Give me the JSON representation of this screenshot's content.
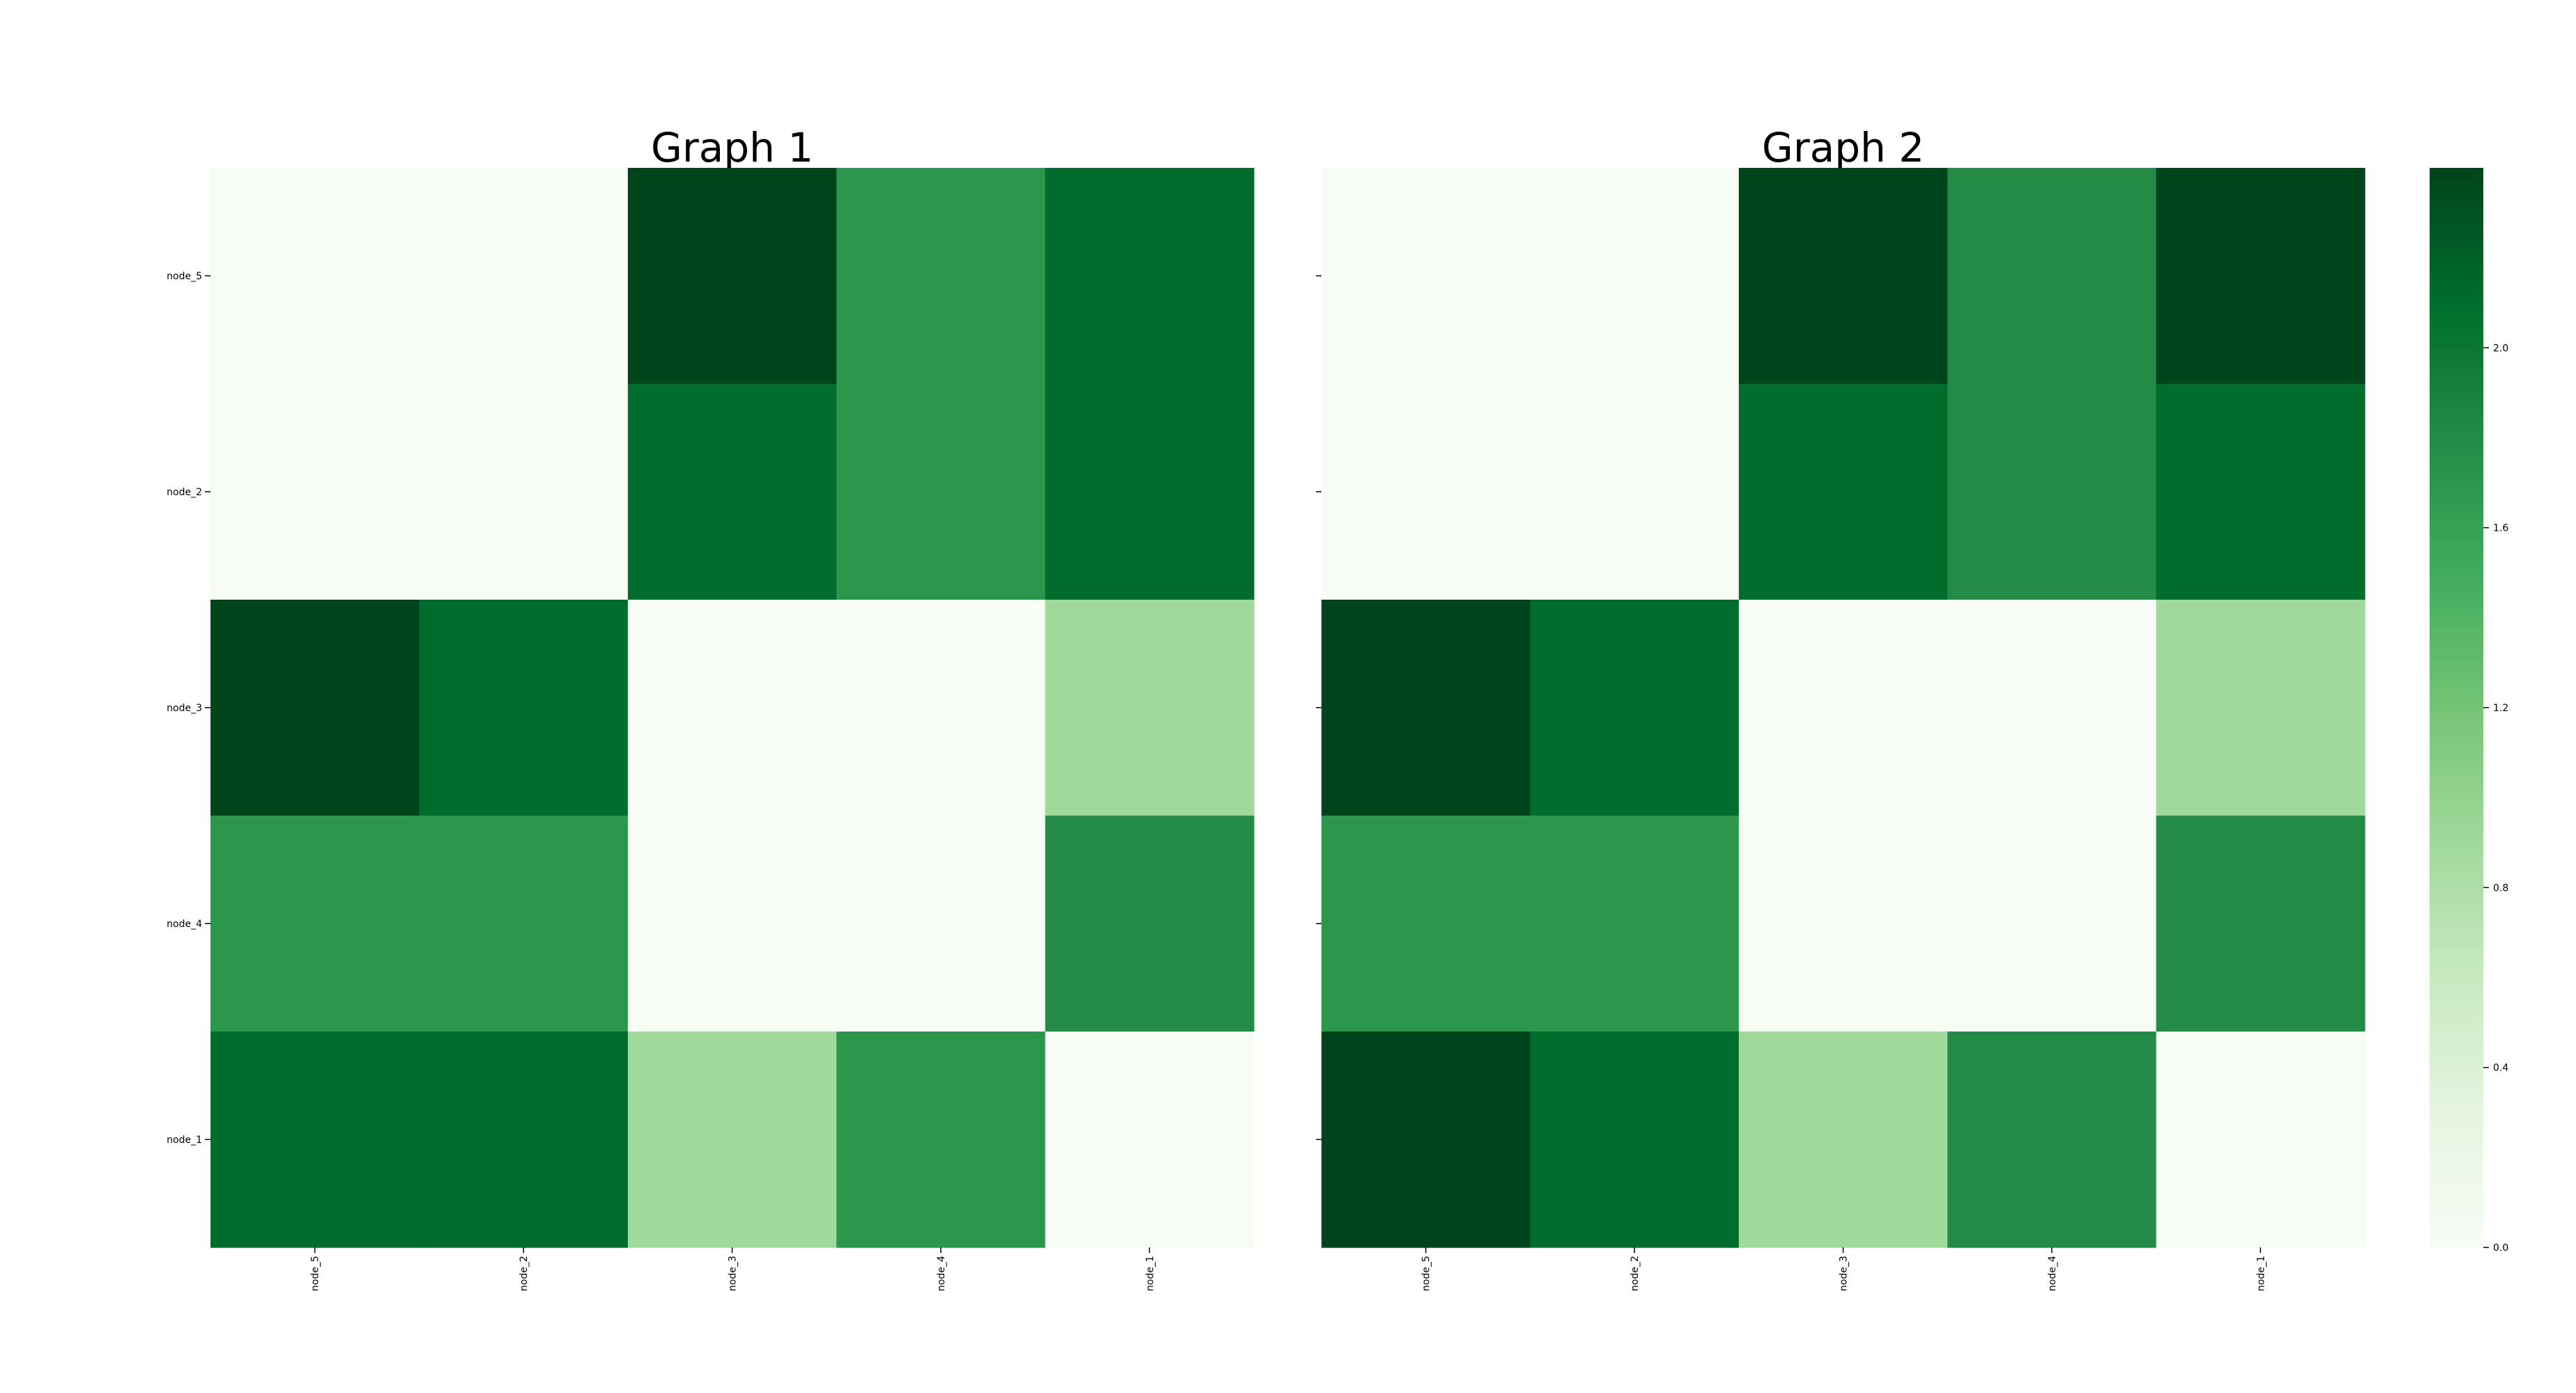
{
  "chart_data": [
    {
      "type": "heatmap",
      "title": "Graph 1",
      "rows": [
        "node_5",
        "node_2",
        "node_3",
        "node_4",
        "node_1"
      ],
      "columns": [
        "node_5",
        "node_2",
        "node_3",
        "node_4",
        "node_1"
      ],
      "values": [
        [
          0.0,
          0.0,
          2.4,
          1.7,
          2.1
        ],
        [
          0.0,
          0.0,
          2.1,
          1.7,
          2.1
        ],
        [
          2.4,
          2.1,
          0.0,
          0.0,
          0.9
        ],
        [
          1.7,
          1.7,
          0.0,
          0.0,
          1.8
        ],
        [
          2.1,
          2.1,
          0.9,
          1.7,
          0.0
        ]
      ],
      "show_row_labels": true
    },
    {
      "type": "heatmap",
      "title": "Graph 2",
      "rows": [
        "node_5",
        "node_2",
        "node_3",
        "node_4",
        "node_1"
      ],
      "columns": [
        "node_5",
        "node_2",
        "node_3",
        "node_4",
        "node_1"
      ],
      "values": [
        [
          0.0,
          0.0,
          2.4,
          1.8,
          2.4
        ],
        [
          0.0,
          0.0,
          2.1,
          1.8,
          2.1
        ],
        [
          2.4,
          2.1,
          0.0,
          0.0,
          0.9
        ],
        [
          1.7,
          1.7,
          0.0,
          0.0,
          1.8
        ],
        [
          2.4,
          2.1,
          0.9,
          1.8,
          0.0
        ]
      ],
      "show_row_labels": false
    }
  ],
  "colorbar": {
    "range": [
      0.0,
      2.4
    ],
    "ticks": [
      0.0,
      0.4,
      0.8,
      1.2,
      1.6,
      2.0
    ],
    "tick_labels": [
      "0.0",
      "0.4",
      "0.8",
      "1.2",
      "1.6",
      "2.0"
    ],
    "colormap": "Greens",
    "colors": [
      "#f7fcf5",
      "#e5f5e0",
      "#c7e9c0",
      "#a1d99b",
      "#74c476",
      "#41ab5d",
      "#238b45",
      "#006d2c",
      "#00441b"
    ]
  }
}
